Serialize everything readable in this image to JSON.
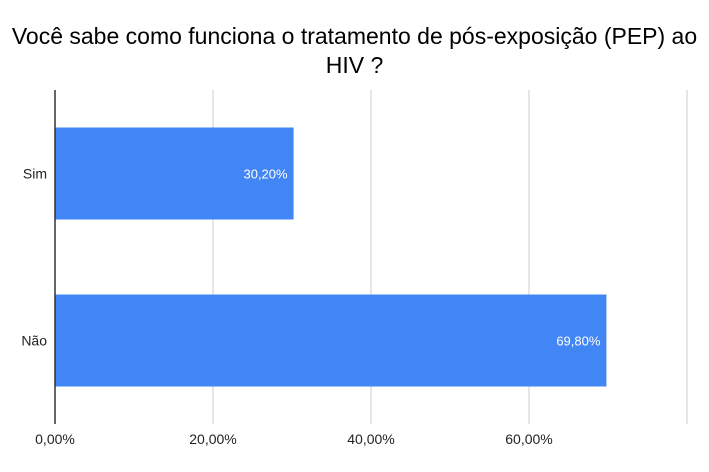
{
  "chart_data": {
    "type": "bar",
    "orientation": "horizontal",
    "title": "Você sabe como funciona o tratamento de pós-exposição (PEP) ao HIV ?",
    "categories": [
      "Sim",
      "Não"
    ],
    "values": [
      30.2,
      69.8
    ],
    "data_labels": [
      "30,20%",
      "69,80%"
    ],
    "xlim": [
      0,
      80
    ],
    "x_ticks": [
      0,
      20,
      40,
      60
    ],
    "x_tick_labels": [
      "0,00%",
      "20,00%",
      "40,00%",
      "60,00%"
    ],
    "xlabel": "",
    "ylabel": "",
    "grid": true,
    "legend": "none",
    "colors": {
      "bar": "#4285f4",
      "grid": "#cccccc",
      "axis": "#333333"
    }
  }
}
